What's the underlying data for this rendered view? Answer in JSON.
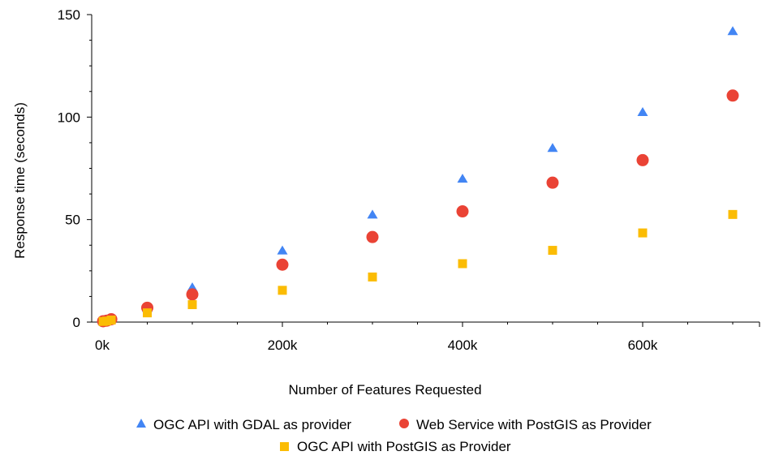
{
  "chart_data": {
    "type": "scatter",
    "title": "",
    "xlabel": "Number of Features Requested",
    "ylabel": "Response time (seconds)",
    "xlim": [
      0,
      730000
    ],
    "ylim": [
      0,
      150
    ],
    "grid": false,
    "legend_position": "bottom",
    "x_ticks": [
      {
        "value": 0,
        "label": "0k"
      },
      {
        "value": 200000,
        "label": "200k"
      },
      {
        "value": 400000,
        "label": "400k"
      },
      {
        "value": 600000,
        "label": "600k"
      }
    ],
    "y_ticks": [
      {
        "value": 0,
        "label": "0"
      },
      {
        "value": 50,
        "label": "50"
      },
      {
        "value": 100,
        "label": "100"
      },
      {
        "value": 150,
        "label": "150"
      }
    ],
    "series": [
      {
        "name": "OGC API with GDAL as provider",
        "marker": "triangle",
        "color": "#4285f4",
        "points": [
          [
            1000,
            0.5
          ],
          [
            5000,
            0.8
          ],
          [
            10000,
            1.7
          ],
          [
            50000,
            7
          ],
          [
            100000,
            17
          ],
          [
            200000,
            35
          ],
          [
            300000,
            52.5
          ],
          [
            400000,
            70
          ],
          [
            500000,
            85
          ],
          [
            600000,
            102.5
          ],
          [
            700000,
            142
          ]
        ]
      },
      {
        "name": "Web Service with PostGIS as Provider",
        "marker": "circle",
        "color": "#ea4335",
        "points": [
          [
            1000,
            0.4
          ],
          [
            5000,
            0.7
          ],
          [
            10000,
            1.4
          ],
          [
            50000,
            7
          ],
          [
            100000,
            13.5
          ],
          [
            200000,
            28
          ],
          [
            300000,
            41.5
          ],
          [
            400000,
            54
          ],
          [
            500000,
            68
          ],
          [
            600000,
            79
          ],
          [
            700000,
            110.5
          ]
        ]
      },
      {
        "name": "OGC API with PostGIS as Provider",
        "marker": "square",
        "color": "#fbbc04",
        "points": [
          [
            1000,
            0.3
          ],
          [
            5000,
            0.5
          ],
          [
            10000,
            1
          ],
          [
            50000,
            4.5
          ],
          [
            100000,
            8.5
          ],
          [
            200000,
            15.5
          ],
          [
            300000,
            22
          ],
          [
            400000,
            28.5
          ],
          [
            500000,
            35
          ],
          [
            600000,
            43.5
          ],
          [
            700000,
            52.5
          ]
        ]
      }
    ]
  }
}
